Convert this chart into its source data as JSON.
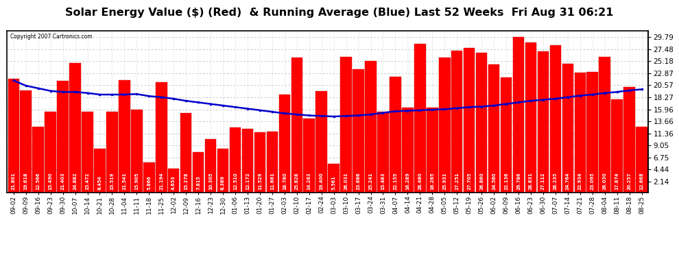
{
  "title": "Solar Energy Value ($) (Red)  & Running Average (Blue) Last 52 Weeks  Fri Aug 31 06:21",
  "copyright": "Copyright 2007 Cartronics.com",
  "bar_color": "#ff0000",
  "line_color": "#0000cc",
  "background_color": "#ffffff",
  "plot_bg_color": "#ffffff",
  "grid_color": "#bbbbbb",
  "categories": [
    "09-02",
    "09-09",
    "09-16",
    "09-23",
    "09-30",
    "10-07",
    "10-14",
    "10-21",
    "10-28",
    "11-04",
    "11-11",
    "11-18",
    "11-25",
    "12-02",
    "12-09",
    "12-16",
    "12-23",
    "12-30",
    "01-06",
    "01-13",
    "01-20",
    "01-27",
    "02-03",
    "02-10",
    "02-17",
    "02-24",
    "03-03",
    "03-10",
    "03-17",
    "03-24",
    "03-31",
    "04-07",
    "04-14",
    "04-21",
    "04-28",
    "05-05",
    "05-12",
    "05-19",
    "05-26",
    "06-02",
    "06-09",
    "06-16",
    "06-23",
    "06-30",
    "07-07",
    "07-14",
    "07-21",
    "07-28",
    "08-04",
    "08-11",
    "08-18",
    "08-25"
  ],
  "values": [
    21.801,
    19.618,
    12.566,
    15.49,
    21.403,
    24.882,
    15.472,
    8.454,
    15.519,
    21.541,
    15.905,
    5.866,
    21.194,
    4.653,
    15.278,
    7.815,
    10.305,
    8.389,
    12.51,
    12.172,
    11.529,
    11.661,
    18.78,
    25.828,
    14.263,
    19.4,
    5.561,
    26.031,
    23.686,
    25.241,
    15.483,
    22.155,
    16.289,
    28.48,
    16.265,
    25.931,
    27.251,
    27.705,
    26.86,
    24.58,
    22.136,
    29.786,
    28.831,
    27.112,
    28.235,
    24.764,
    22.934,
    23.095,
    26.03,
    17.874,
    20.257,
    12.668
  ],
  "running_avg": [
    21.5,
    20.5,
    20.0,
    19.5,
    19.3,
    19.3,
    19.1,
    18.8,
    18.8,
    18.8,
    18.9,
    18.5,
    18.3,
    18.0,
    17.6,
    17.3,
    17.0,
    16.7,
    16.4,
    16.1,
    15.8,
    15.5,
    15.2,
    15.0,
    14.8,
    14.7,
    14.6,
    14.7,
    14.8,
    15.0,
    15.3,
    15.6,
    15.7,
    15.8,
    15.9,
    16.0,
    16.2,
    16.4,
    16.5,
    16.7,
    17.0,
    17.3,
    17.6,
    17.8,
    18.0,
    18.3,
    18.6,
    18.8,
    19.1,
    19.3,
    19.6,
    19.8
  ],
  "yticks": [
    2.14,
    4.44,
    6.75,
    9.05,
    11.36,
    13.66,
    15.96,
    18.27,
    20.57,
    22.87,
    25.18,
    27.48,
    29.79
  ],
  "ylim": [
    0,
    31.0
  ],
  "title_fontsize": 11.5,
  "value_fontsize": 4.8,
  "tick_fontsize": 6.5,
  "ytick_fontsize": 7.5
}
